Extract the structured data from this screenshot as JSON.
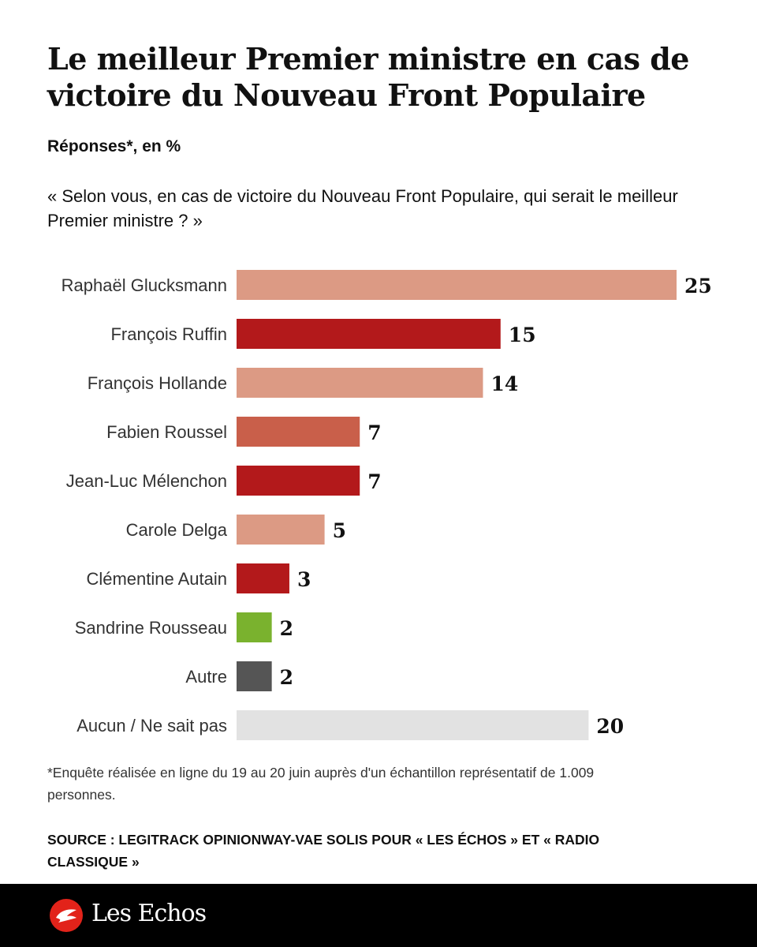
{
  "header": {
    "title": "Le meilleur Premier ministre en cas de victoire du Nouveau Front Populaire",
    "subtitle": "Réponses*, en %",
    "question": "« Selon vous, en cas de victoire du Nouveau Front Populaire, qui serait le meilleur Premier ministre ? »"
  },
  "chart_data": {
    "type": "bar",
    "orientation": "horizontal",
    "title": "Le meilleur Premier ministre en cas de victoire du Nouveau Front Populaire",
    "subtitle": "Réponses*, en %",
    "categories": [
      "Raphaël Glucksmann",
      "François Ruffin",
      "François Hollande",
      "Fabien Roussel",
      "Jean-Luc Mélenchon",
      "Carole Delga",
      "Clémentine Autain",
      "Sandrine Rousseau",
      "Autre",
      "Aucun / Ne sait pas"
    ],
    "values": [
      25,
      15,
      14,
      7,
      7,
      5,
      3,
      2,
      2,
      20
    ],
    "colors": [
      "#dc9a84",
      "#b3191b",
      "#dc9a84",
      "#c95f4a",
      "#b3191b",
      "#dc9a84",
      "#b3191b",
      "#7ab22e",
      "#555555",
      "#e2e2e2"
    ],
    "xlim": [
      0,
      25
    ],
    "grid": false,
    "data_labels": true
  },
  "footer": {
    "footnote": "*Enquête réalisée en ligne du 19 au 20 juin auprès d'un échantillon représentatif de 1.009 personnes.",
    "source": "SOURCE : LEGITRACK OPINIONWAY-VAE SOLIS POUR « LES ÉCHOS » ET « RADIO CLASSIQUE »",
    "brand": "Les Echos",
    "brand_color": "#e2231a"
  }
}
